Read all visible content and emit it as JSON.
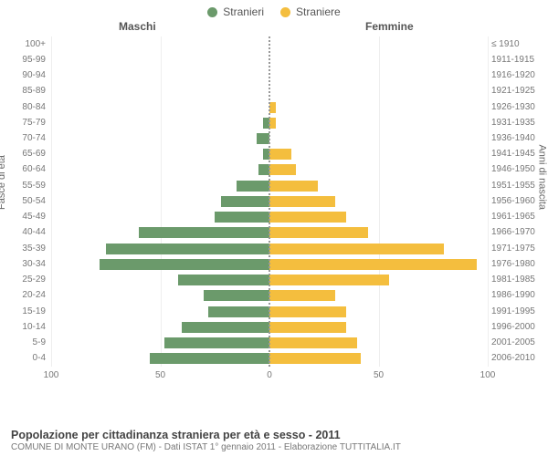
{
  "legend": {
    "male": {
      "label": "Stranieri",
      "color": "#6b9a6b"
    },
    "female": {
      "label": "Straniere",
      "color": "#f4be3e"
    }
  },
  "headers": {
    "male": "Maschi",
    "female": "Femmine"
  },
  "y_left_title": "Fasce di età",
  "y_right_title": "Anni di nascita",
  "chart": {
    "type": "population-pyramid",
    "background_color": "#ffffff",
    "grid_color": "#eeeeee",
    "centerline_color": "#999999",
    "male_color": "#6b9a6b",
    "female_color": "#f4be3e",
    "x_max": 100,
    "x_ticks": [
      100,
      50,
      0,
      50,
      100
    ],
    "label_fontsize": 10,
    "header_fontsize": 12,
    "rows": [
      {
        "age": "100+",
        "birth": "≤ 1910",
        "m": 0,
        "f": 0
      },
      {
        "age": "95-99",
        "birth": "1911-1915",
        "m": 0,
        "f": 0
      },
      {
        "age": "90-94",
        "birth": "1916-1920",
        "m": 0,
        "f": 0
      },
      {
        "age": "85-89",
        "birth": "1921-1925",
        "m": 0,
        "f": 0
      },
      {
        "age": "80-84",
        "birth": "1926-1930",
        "m": 0,
        "f": 3
      },
      {
        "age": "75-79",
        "birth": "1931-1935",
        "m": 3,
        "f": 3
      },
      {
        "age": "70-74",
        "birth": "1936-1940",
        "m": 6,
        "f": 0
      },
      {
        "age": "65-69",
        "birth": "1941-1945",
        "m": 3,
        "f": 10
      },
      {
        "age": "60-64",
        "birth": "1946-1950",
        "m": 5,
        "f": 12
      },
      {
        "age": "55-59",
        "birth": "1951-1955",
        "m": 15,
        "f": 22
      },
      {
        "age": "50-54",
        "birth": "1956-1960",
        "m": 22,
        "f": 30
      },
      {
        "age": "45-49",
        "birth": "1961-1965",
        "m": 25,
        "f": 35
      },
      {
        "age": "40-44",
        "birth": "1966-1970",
        "m": 60,
        "f": 45
      },
      {
        "age": "35-39",
        "birth": "1971-1975",
        "m": 75,
        "f": 80
      },
      {
        "age": "30-34",
        "birth": "1976-1980",
        "m": 78,
        "f": 95
      },
      {
        "age": "25-29",
        "birth": "1981-1985",
        "m": 42,
        "f": 55
      },
      {
        "age": "20-24",
        "birth": "1986-1990",
        "m": 30,
        "f": 30
      },
      {
        "age": "15-19",
        "birth": "1991-1995",
        "m": 28,
        "f": 35
      },
      {
        "age": "10-14",
        "birth": "1996-2000",
        "m": 40,
        "f": 35
      },
      {
        "age": "5-9",
        "birth": "2001-2005",
        "m": 48,
        "f": 40
      },
      {
        "age": "0-4",
        "birth": "2006-2010",
        "m": 55,
        "f": 42
      }
    ]
  },
  "footer": {
    "title": "Popolazione per cittadinanza straniera per età e sesso - 2011",
    "subtitle": "COMUNE DI MONTE URANO (FM) - Dati ISTAT 1° gennaio 2011 - Elaborazione TUTTITALIA.IT"
  }
}
